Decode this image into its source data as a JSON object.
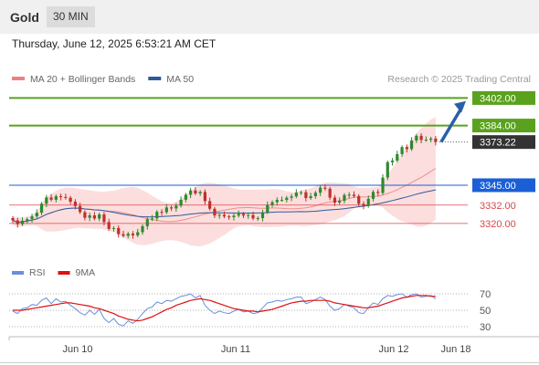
{
  "header": {
    "title": "Gold",
    "interval": "30 MIN"
  },
  "datetime": "Thursday, June 12, 2025 6:53:21 AM CET",
  "colors": {
    "resistance": "#5aa21e",
    "support": "#1b5fd6",
    "sub_support": "#d94747",
    "last_price": "#333333",
    "candle_up": "#2d8a2d",
    "candle_down": "#c0302c",
    "bb_fill": "#fbd3d3",
    "ma20": "#f08d8d",
    "ma50": "#2d5a9c",
    "rsi": "#6a8fdc",
    "rsi_ma": "#e01010",
    "arrow": "#2a5fa8"
  },
  "chart_data": [
    {
      "type": "candlestick",
      "title": "Gold",
      "legend": [
        {
          "name": "MA 20 + Bollinger Bands",
          "color": "#f08080"
        },
        {
          "name": "MA 50",
          "color": "#2d5a9c"
        }
      ],
      "legend_position": "top-left",
      "watermark": "Research © 2025 Trading Central",
      "x_ticks": [
        "Jun 10",
        "Jun 11",
        "Jun 12",
        "Jun 18"
      ],
      "ylim": [
        3308,
        3410
      ],
      "levels": [
        {
          "label": "3402.00",
          "value": 3402.0,
          "kind": "resistance"
        },
        {
          "label": "3384.00",
          "value": 3384.0,
          "kind": "resistance"
        },
        {
          "label": "3373.22",
          "value": 3373.22,
          "kind": "last"
        },
        {
          "label": "3345.00",
          "value": 3345.0,
          "kind": "support"
        },
        {
          "label": "3332.00",
          "value": 3332.0,
          "kind": "sub_support"
        },
        {
          "label": "3320.00",
          "value": 3320.0,
          "kind": "sub_support"
        }
      ],
      "close": [
        3322.0,
        3319.5,
        3321.8,
        3322.8,
        3324.6,
        3327.0,
        3332.9,
        3337.0,
        3335.5,
        3337.8,
        3337.3,
        3336.8,
        3334.2,
        3331.4,
        3327.4,
        3323.7,
        3325.3,
        3323.2,
        3325.9,
        3320.9,
        3316.4,
        3317.0,
        3313.0,
        3311.9,
        3313.3,
        3312.2,
        3314.3,
        3318.2,
        3322.7,
        3323.3,
        3327.6,
        3327.3,
        3330.5,
        3329.8,
        3331.6,
        3335.5,
        3338.8,
        3341.6,
        3339.6,
        3340.6,
        3334.6,
        3329.6,
        3325.2,
        3325.6,
        3324.6,
        3324.1,
        3325.1,
        3326.3,
        3325.2,
        3325.5,
        3323.3,
        3323.5,
        3327.3,
        3332.2,
        3333.9,
        3335.4,
        3335.4,
        3336.8,
        3337.7,
        3340.2,
        3340.4,
        3336.6,
        3337.8,
        3340.1,
        3343.4,
        3342.7,
        3336.9,
        3333.6,
        3334.8,
        3338.6,
        3338.8,
        3337.9,
        3332.8,
        3331.5,
        3336.1,
        3340.6,
        3339.9,
        3350.0,
        3360.0,
        3361.1,
        3365.3,
        3369.9,
        3368.6,
        3374.2,
        3377.3,
        3374.6,
        3374.7,
        3375.5,
        3373.22
      ],
      "sub_chart": {
        "type": "line",
        "legend": [
          {
            "name": "RSI",
            "color": "#6a8fdc"
          },
          {
            "name": "9MA",
            "color": "#e01010"
          }
        ],
        "y_ticks": [
          70,
          50,
          30
        ],
        "ylim": [
          20,
          80
        ],
        "rsi": [
          49,
          46,
          52,
          53,
          57,
          56,
          62,
          65,
          58,
          64,
          60,
          61,
          56,
          52,
          47,
          44,
          50,
          45,
          51,
          40,
          35,
          40,
          33,
          31,
          37,
          34,
          39,
          46,
          52,
          54,
          60,
          58,
          62,
          61,
          64,
          67,
          68,
          70,
          65,
          68,
          56,
          50,
          46,
          49,
          47,
          46,
          49,
          51,
          48,
          49,
          46,
          47,
          53,
          59,
          60,
          62,
          61,
          63,
          64,
          66,
          66,
          58,
          60,
          63,
          66,
          63,
          55,
          50,
          52,
          57,
          55,
          53,
          47,
          46,
          53,
          59,
          57,
          64,
          68,
          67,
          69,
          70,
          66,
          69,
          70,
          66,
          67,
          68,
          64
        ],
        "rsi_9ma": [
          50,
          50,
          50,
          51,
          52,
          53,
          54,
          55,
          56,
          57,
          58,
          59,
          59,
          58,
          57,
          56,
          55,
          53,
          52,
          50,
          48,
          46,
          43,
          41,
          39,
          38,
          37,
          38,
          40,
          42,
          45,
          48,
          51,
          53,
          56,
          58,
          60,
          62,
          63,
          64,
          63,
          62,
          60,
          58,
          56,
          54,
          52,
          51,
          50,
          49,
          49,
          48,
          49,
          50,
          51,
          53,
          55,
          57,
          59,
          60,
          61,
          61,
          62,
          62,
          62,
          62,
          61,
          59,
          58,
          57,
          56,
          55,
          54,
          53,
          53,
          54,
          55,
          57,
          59,
          61,
          63,
          65,
          66,
          67,
          68,
          68,
          68,
          67,
          67
        ]
      }
    }
  ]
}
